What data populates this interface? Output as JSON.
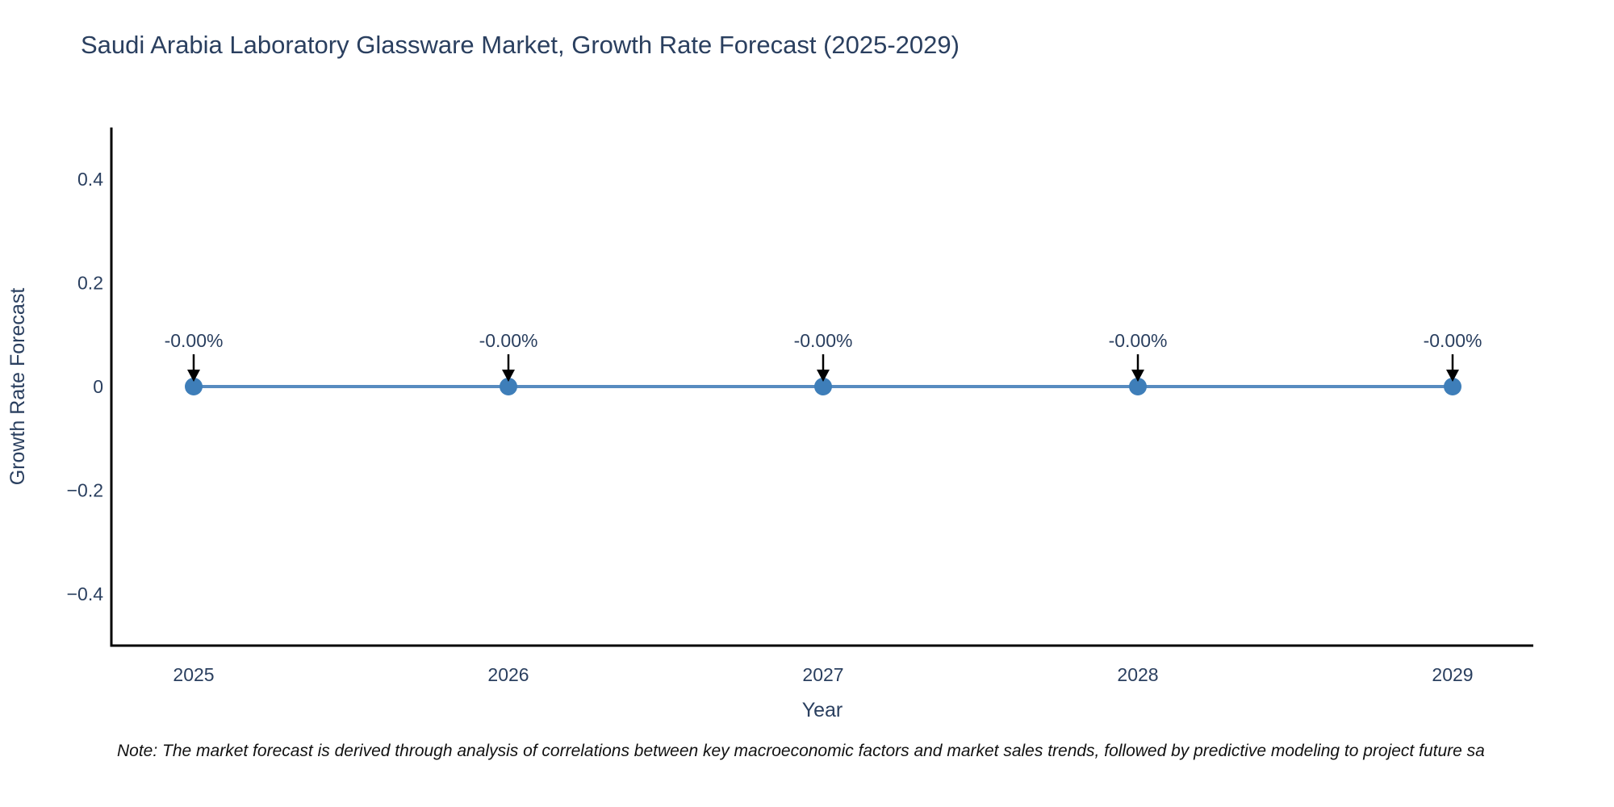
{
  "title": "Saudi Arabia Laboratory Glassware Market, Growth Rate Forecast (2025-2029)",
  "note": "Note: The market forecast is derived through analysis of correlations between key macroeconomic factors and market sales trends, followed by predictive modeling to project future sa",
  "colors": {
    "text": "#2a3f5f",
    "axis": "#000000",
    "line": "#578bc0",
    "marker": "#3e7eb9",
    "arrow": "#000000",
    "note_text": "#111111",
    "background": "#ffffff"
  },
  "chart_data": {
    "type": "line",
    "title": "Saudi Arabia Laboratory Glassware Market, Growth Rate Forecast (2025-2029)",
    "x": [
      2025,
      2026,
      2027,
      2028,
      2029
    ],
    "categories": [
      "2025",
      "2026",
      "2027",
      "2028",
      "2029"
    ],
    "values": [
      0,
      0,
      0,
      0,
      0
    ],
    "point_labels": [
      "-0.00%",
      "-0.00%",
      "-0.00%",
      "-0.00%",
      "-0.00%"
    ],
    "xlabel": "Year",
    "ylabel": "Growth Rate Forecast",
    "ylim": [
      -0.5,
      0.5
    ],
    "yticks": [
      {
        "value": 0.4,
        "label": "0.4"
      },
      {
        "value": 0.2,
        "label": "0.2"
      },
      {
        "value": 0,
        "label": "0"
      },
      {
        "value": -0.2,
        "label": "−0.2"
      },
      {
        "value": -0.4,
        "label": "−0.4"
      }
    ],
    "grid": false,
    "legend": "none",
    "annotation_arrows": true,
    "marker_style": "circle"
  }
}
